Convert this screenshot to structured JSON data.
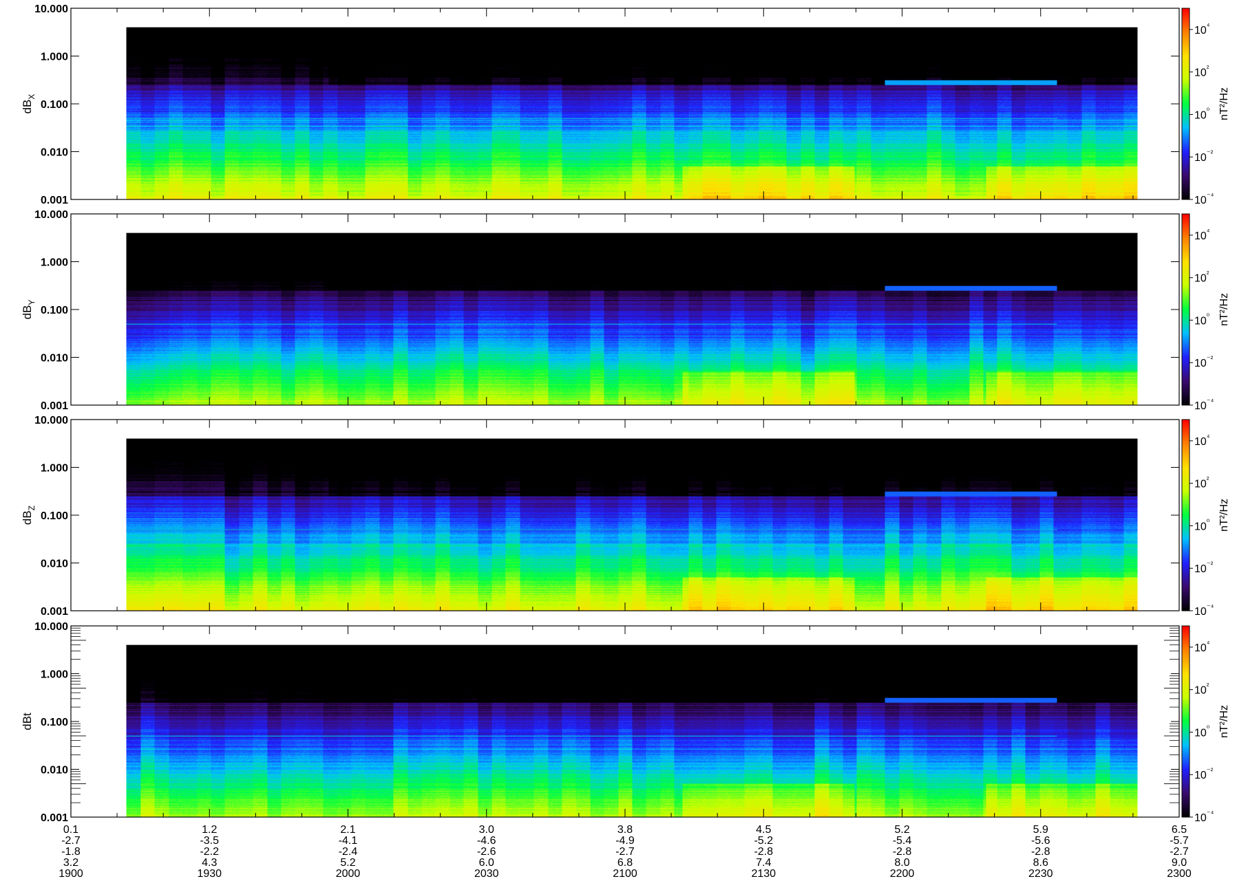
{
  "chart_data": {
    "type": "heatmap",
    "panels": [
      {
        "ylabel_main": "dB",
        "ylabel_sub": "X",
        "cbar_label": "nT²/Hz",
        "minor_ticks": false
      },
      {
        "ylabel_main": "dB",
        "ylabel_sub": "Y",
        "cbar_label": "nT²/Hz",
        "minor_ticks": false
      },
      {
        "ylabel_main": "dB",
        "ylabel_sub": "Z",
        "cbar_label": "nT²/Hz",
        "minor_ticks": false
      },
      {
        "ylabel_main": "dBt",
        "ylabel_sub": "",
        "cbar_label": "nT²/Hz",
        "minor_ticks": true
      }
    ],
    "y_axis": {
      "scale": "log",
      "ylim": [
        0.001,
        10.0
      ],
      "tick_values": [
        0.001,
        0.01,
        0.1,
        1,
        10
      ],
      "tick_labels": [
        "0.001",
        "0.010",
        "0.100",
        "1.000",
        "10.000"
      ]
    },
    "x_axis": {
      "time_range": [
        "1900",
        "2300"
      ],
      "tick_rows": [
        [
          "0.1",
          "1.2",
          "2.1",
          "3.0",
          "3.8",
          "4.5",
          "5.2",
          "5.9",
          "6.5"
        ],
        [
          "-2.7",
          "-3.5",
          "-4.1",
          "-4.6",
          "-4.9",
          "-5.2",
          "-5.4",
          "-5.6",
          "-5.7"
        ],
        [
          "-1.8",
          "-2.2",
          "-2.4",
          "-2.6",
          "-2.7",
          "-2.8",
          "-2.8",
          "-2.8",
          "-2.7"
        ],
        [
          "3.2",
          "4.3",
          "5.2",
          "6.0",
          "6.8",
          "7.4",
          "8.0",
          "8.6",
          "9.0"
        ],
        [
          "1900",
          "1930",
          "2000",
          "2030",
          "2100",
          "2130",
          "2200",
          "2230",
          "2300"
        ]
      ]
    },
    "colorbar": {
      "scale": "log",
      "range": [
        0.0001,
        100000
      ],
      "tick_exponents": [
        -4,
        -2,
        0,
        2,
        4
      ],
      "tick_labels": [
        "10⁻⁴",
        "10⁻²",
        "10⁰",
        "10²",
        "10⁴"
      ],
      "colors": [
        "#000000",
        "#3a0a6e",
        "#2020ff",
        "#00c0ff",
        "#00ff40",
        "#c8ff00",
        "#ffe000",
        "#ff8000",
        "#ff0000"
      ]
    },
    "spectrogram": {
      "data_time_range": [
        "1912",
        "2251"
      ],
      "freq_max": 4.0
    }
  }
}
